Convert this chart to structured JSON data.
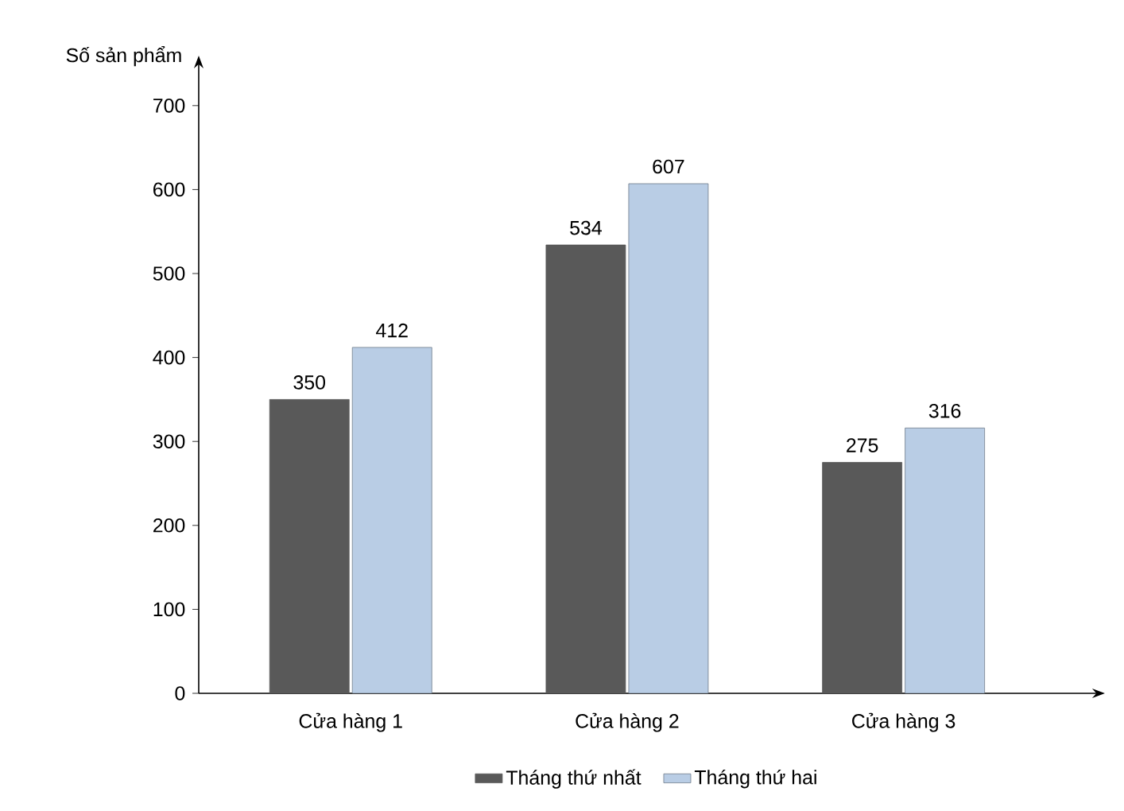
{
  "chart_data": {
    "type": "bar",
    "ylabel": "Số sản phẩm",
    "categories": [
      "Cửa hàng 1",
      "Cửa hàng 2",
      "Cửa hàng 3"
    ],
    "series": [
      {
        "name": "Tháng thứ nhất",
        "color": "#595959",
        "values": [
          350,
          534,
          275
        ]
      },
      {
        "name": "Tháng thứ hai",
        "color": "#b9cde5",
        "values": [
          412,
          607,
          316
        ]
      }
    ],
    "ylim": [
      0,
      750
    ],
    "yticks": [
      0,
      100,
      200,
      300,
      400,
      500,
      600,
      700
    ],
    "data_labels": true,
    "grid": false,
    "legend": "bottom"
  }
}
